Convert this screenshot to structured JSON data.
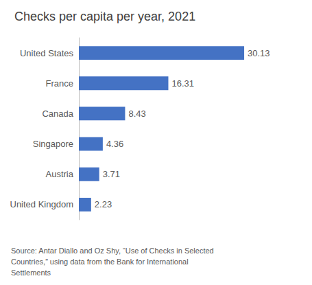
{
  "chart_data": {
    "type": "bar",
    "orientation": "horizontal",
    "title": "Checks per capita per year, 2021",
    "categories": [
      "United States",
      "France",
      "Canada",
      "Singapore",
      "Austria",
      "United Kingdom"
    ],
    "values": [
      30.13,
      16.31,
      8.43,
      4.36,
      3.71,
      2.23
    ],
    "color": "#4472C4",
    "xlim": [
      0,
      35
    ],
    "grid": false,
    "data_labels": true,
    "tick_labels": "y",
    "annotations": [
      "Source: Antar Diallo and Oz Shy, “Use of Checks in Selected",
      "Countries,” using data from the Bank for International",
      "Settlements"
    ]
  }
}
